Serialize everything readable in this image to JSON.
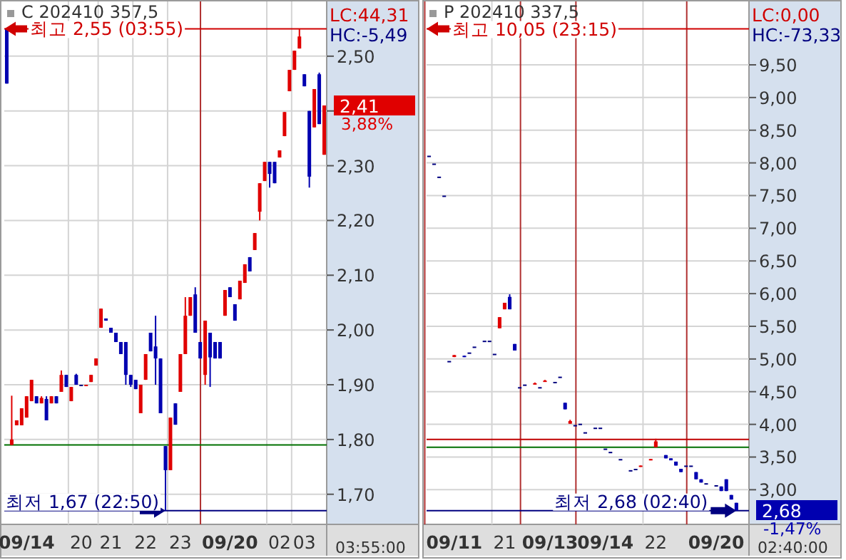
{
  "chart_data": [
    {
      "type": "candlestick",
      "title": "C 202410 357,5",
      "grid": true,
      "categories": [
        null,
        null,
        null,
        null,
        "09/14",
        null,
        null,
        null,
        null,
        null,
        null,
        null,
        null,
        null,
        null,
        "20",
        null,
        null,
        null,
        null,
        null,
        "21",
        null,
        null,
        null,
        null,
        null,
        null,
        "22",
        null,
        null,
        null,
        null,
        null,
        null,
        "23",
        null,
        null,
        null,
        null,
        null,
        null,
        null,
        null,
        null,
        "09/20",
        null,
        null,
        null,
        null,
        null,
        null,
        null,
        null,
        null,
        "02",
        null,
        null,
        null,
        null,
        "03",
        null,
        null,
        null,
        null
      ],
      "ohlc": [
        [
          2.55,
          2.55,
          2.45,
          2.45
        ],
        [
          1.79,
          1.88,
          1.79,
          1.8
        ],
        [
          1.826,
          1.835,
          1.826,
          1.835
        ],
        [
          1.826,
          1.857,
          1.826,
          1.857
        ],
        [
          1.84,
          1.879,
          1.84,
          1.879
        ],
        [
          1.87,
          1.909,
          1.87,
          1.909
        ],
        [
          1.879,
          1.879,
          1.866,
          1.866
        ],
        [
          1.866,
          1.879,
          1.866,
          1.876
        ],
        [
          1.874,
          1.879,
          1.835,
          1.835
        ],
        [
          1.866,
          1.879,
          1.866,
          1.879
        ],
        [
          1.879,
          1.879,
          1.866,
          1.866
        ],
        [
          1.887,
          1.926,
          1.887,
          1.918
        ],
        [
          1.918,
          1.918,
          1.896,
          1.896
        ],
        [
          1.87,
          1.896,
          1.87,
          1.896
        ],
        [
          1.918,
          1.92,
          1.9,
          1.9
        ],
        [
          1.9,
          1.9,
          1.9,
          1.9
        ],
        [
          1.898,
          1.9,
          1.898,
          1.9
        ],
        [
          1.905,
          1.918,
          1.905,
          1.918
        ],
        [
          1.935,
          1.948,
          1.935,
          1.948
        ],
        [
          2.004,
          2.039,
          2.004,
          2.039
        ],
        [
          2.021,
          2.021,
          2.017,
          2.017
        ],
        [
          2.004,
          2.004,
          1.995,
          1.995
        ],
        [
          1.995,
          1.995,
          1.978,
          1.978
        ],
        [
          1.978,
          1.978,
          1.956,
          1.956
        ],
        [
          1.978,
          1.978,
          1.9,
          1.918
        ],
        [
          1.918,
          1.918,
          1.896,
          1.9
        ],
        [
          1.909,
          1.909,
          1.892,
          1.892
        ],
        [
          1.848,
          1.9,
          1.848,
          1.9
        ],
        [
          1.909,
          1.956,
          1.909,
          1.956
        ],
        [
          1.995,
          1.995,
          1.961,
          1.961
        ],
        [
          1.97,
          2.026,
          1.9,
          1.948
        ],
        [
          1.948,
          1.948,
          1.848,
          1.848
        ],
        [
          1.788,
          1.788,
          1.67,
          1.744
        ],
        [
          1.744,
          1.84,
          1.744,
          1.84
        ],
        [
          1.866,
          1.866,
          1.827,
          1.827
        ],
        [
          1.887,
          1.956,
          1.887,
          1.956
        ],
        [
          1.956,
          2.06,
          1.956,
          2.026
        ],
        [
          2.026,
          2.06,
          2.026,
          2.06
        ],
        [
          2.065,
          2.078,
          1.995,
          1.995
        ],
        [
          1.978,
          1.978,
          1.948,
          1.948
        ],
        [
          1.918,
          2.017,
          1.9,
          2.017
        ],
        [
          1.995,
          1.995,
          1.896,
          1.95
        ],
        [
          1.978,
          1.978,
          1.948,
          1.948
        ],
        [
          1.978,
          1.978,
          1.948,
          1.948
        ],
        [
          2.026,
          2.073,
          2.026,
          2.073
        ],
        [
          2.078,
          2.078,
          2.06,
          2.06
        ],
        [
          2.047,
          2.047,
          2.017,
          2.017
        ],
        [
          2.056,
          2.09,
          2.056,
          2.09
        ],
        [
          2.086,
          2.12,
          2.086,
          2.12
        ],
        [
          2.133,
          2.133,
          2.107,
          2.107
        ],
        [
          2.146,
          2.177,
          2.146,
          2.177
        ],
        [
          2.216,
          2.268,
          2.2,
          2.268
        ],
        [
          2.272,
          2.307,
          2.272,
          2.307
        ],
        [
          2.307,
          2.307,
          2.26,
          2.285
        ],
        [
          2.307,
          2.307,
          2.268,
          2.268
        ],
        [
          2.315,
          2.328,
          2.315,
          2.328
        ],
        [
          2.354,
          2.398,
          2.354,
          2.398
        ],
        [
          2.436,
          2.475,
          2.436,
          2.475
        ],
        [
          2.475,
          2.51,
          2.475,
          2.51
        ],
        [
          2.514,
          2.55,
          2.514,
          2.536
        ],
        [
          2.467,
          2.467,
          2.445,
          2.445
        ],
        [
          2.4,
          2.4,
          2.26,
          2.28
        ],
        [
          2.37,
          2.44,
          2.37,
          2.44
        ],
        [
          2.467,
          2.47,
          2.376,
          2.376
        ],
        [
          2.32,
          2.41,
          2.32,
          2.41
        ]
      ],
      "ylim": [
        1.645,
        2.6
      ],
      "yticks": [
        {
          "value": 1.7,
          "label": "1,70"
        },
        {
          "value": 1.8,
          "label": "1,80"
        },
        {
          "value": 1.9,
          "label": "1,90"
        },
        {
          "value": 2.0,
          "label": "2,00"
        },
        {
          "value": 2.1,
          "label": "2,10"
        },
        {
          "value": 2.2,
          "label": "2,20"
        },
        {
          "value": 2.3,
          "label": "2,30"
        },
        {
          "value": 2.4,
          "label": null
        },
        {
          "value": 2.5,
          "label": "2,50"
        }
      ],
      "ref_lines": [
        {
          "axis": "y",
          "value": 1.79,
          "color": "#007000"
        },
        {
          "axis": "y",
          "value": 2.55,
          "label": "최고 2,55 (03:55)",
          "color": "#d00000"
        },
        {
          "axis": "y",
          "value": 1.67,
          "label": "최저 1,67 (22:50)",
          "color": "#000080"
        }
      ],
      "annotations": [
        "LC:44,31",
        "HC:-5,49",
        "2,41",
        "3,88%",
        "03:55:00"
      ]
    },
    {
      "type": "candlestick",
      "title": "P 202410 337,5",
      "grid": true,
      "categories": [
        null,
        null,
        null,
        null,
        null,
        "09/11",
        null,
        null,
        null,
        null,
        null,
        null,
        null,
        null,
        null,
        "21",
        null,
        null,
        null,
        null,
        null,
        null,
        null,
        null,
        "09/13",
        null,
        null,
        null,
        null,
        null,
        null,
        null,
        null,
        null,
        null,
        "09/14",
        null,
        null,
        null,
        null,
        null,
        null,
        null,
        null,
        null,
        "22",
        null,
        null,
        null,
        null,
        null,
        null,
        null,
        null,
        null,
        null,
        null,
        "09/20",
        null,
        null,
        null,
        null,
        null,
        null
      ],
      "ohlc": [
        [
          8.11,
          8.11,
          8.11,
          8.11
        ],
        [
          7.99,
          7.99,
          7.99,
          7.99
        ],
        [
          7.79,
          7.79,
          7.79,
          7.79
        ],
        [
          7.5,
          7.5,
          7.5,
          7.5
        ],
        [
          4.97,
          4.97,
          4.97,
          4.97
        ],
        [
          5.03,
          5.06,
          5.03,
          5.06
        ],
        null,
        [
          5.05,
          5.05,
          5.03,
          5.03
        ],
        [
          5.1,
          5.1,
          5.1,
          5.1
        ],
        [
          5.19,
          5.19,
          5.19,
          5.19
        ],
        null,
        [
          5.28,
          5.28,
          5.28,
          5.28
        ],
        [
          5.28,
          5.28,
          5.28,
          5.28
        ],
        [
          5.08,
          5.08,
          5.08,
          5.08
        ],
        [
          5.47,
          5.64,
          5.47,
          5.64
        ],
        [
          5.76,
          5.86,
          5.76,
          5.86
        ],
        [
          5.95,
          5.99,
          5.76,
          5.76
        ],
        [
          5.23,
          5.23,
          5.13,
          5.13
        ],
        [
          4.57,
          4.57,
          4.57,
          4.57
        ],
        [
          4.61,
          4.61,
          4.61,
          4.61
        ],
        null,
        [
          4.61,
          4.64,
          4.61,
          4.63
        ],
        [
          4.57,
          4.57,
          4.57,
          4.57
        ],
        [
          4.65,
          4.68,
          4.65,
          4.67
        ],
        null,
        [
          4.65,
          4.65,
          4.65,
          4.65
        ],
        [
          4.73,
          4.73,
          4.73,
          4.73
        ],
        [
          4.33,
          4.33,
          4.23,
          4.23
        ],
        [
          4.01,
          4.07,
          4.01,
          4.05
        ],
        [
          3.99,
          3.99,
          3.99,
          3.99
        ],
        [
          4.01,
          4.01,
          4.01,
          4.01
        ],
        [
          3.88,
          3.88,
          3.88,
          3.88
        ],
        null,
        [
          3.95,
          3.95,
          3.95,
          3.95
        ],
        [
          3.95,
          3.95,
          3.95,
          3.95
        ],
        [
          3.63,
          3.63,
          3.63,
          3.63
        ],
        [
          3.58,
          3.58,
          3.58,
          3.58
        ],
        null,
        [
          3.47,
          3.47,
          3.47,
          3.47
        ],
        null,
        [
          3.3,
          3.3,
          3.3,
          3.3
        ],
        [
          3.32,
          3.32,
          3.32,
          3.32
        ],
        [
          3.35,
          3.37,
          3.35,
          3.37
        ],
        null,
        [
          3.45,
          3.47,
          3.45,
          3.47
        ],
        [
          3.65,
          3.78,
          3.65,
          3.74
        ],
        null,
        [
          3.53,
          3.53,
          3.48,
          3.48
        ],
        [
          3.48,
          3.48,
          3.45,
          3.45
        ],
        [
          3.43,
          3.43,
          3.37,
          3.37
        ],
        [
          3.32,
          3.32,
          3.27,
          3.27
        ],
        [
          3.37,
          3.37,
          3.37,
          3.37
        ],
        [
          3.37,
          3.37,
          3.37,
          3.37
        ],
        [
          3.27,
          3.27,
          3.16,
          3.16
        ],
        [
          3.16,
          3.16,
          3.11,
          3.11
        ],
        [
          3.1,
          3.1,
          3.1,
          3.1
        ],
        null,
        [
          3.07,
          3.07,
          3.07,
          3.07
        ],
        [
          3.05,
          3.05,
          2.98,
          2.98
        ],
        [
          3.16,
          3.16,
          2.98,
          2.98
        ],
        [
          2.92,
          2.92,
          2.85,
          2.85
        ],
        [
          2.8,
          2.8,
          2.68,
          2.68
        ],
        null,
        null
      ],
      "ylim": [
        2.47,
        10.47
      ],
      "yticks": [
        {
          "value": 3.0,
          "label": "3,00"
        },
        {
          "value": 3.5,
          "label": "3,50"
        },
        {
          "value": 4.0,
          "label": "4,00"
        },
        {
          "value": 4.5,
          "label": "4,50"
        },
        {
          "value": 5.0,
          "label": "5,00"
        },
        {
          "value": 5.5,
          "label": "5,50"
        },
        {
          "value": 6.0,
          "label": "6,00"
        },
        {
          "value": 6.5,
          "label": "6,50"
        },
        {
          "value": 7.0,
          "label": "7,00"
        },
        {
          "value": 7.5,
          "label": "7,50"
        },
        {
          "value": 8.0,
          "label": "8,00"
        },
        {
          "value": 8.5,
          "label": "8,50"
        },
        {
          "value": 9.0,
          "label": "9,00"
        },
        {
          "value": 9.5,
          "label": "9,50"
        }
      ],
      "ref_lines": [
        {
          "axis": "y",
          "value": 3.77,
          "color": "#c00000"
        },
        {
          "axis": "y",
          "value": 3.65,
          "color": "#007000"
        },
        {
          "axis": "y",
          "value": 10.05,
          "label": "최고 10,05 (23:15)",
          "color": "#d00000"
        },
        {
          "axis": "y",
          "value": 2.68,
          "label": "최저 2,68 (02:40)",
          "color": "#000080"
        }
      ],
      "annotations": [
        "LC:0,00",
        "HC:-73,33",
        "2,68",
        "-1,47%",
        "02:40:00"
      ]
    }
  ]
}
